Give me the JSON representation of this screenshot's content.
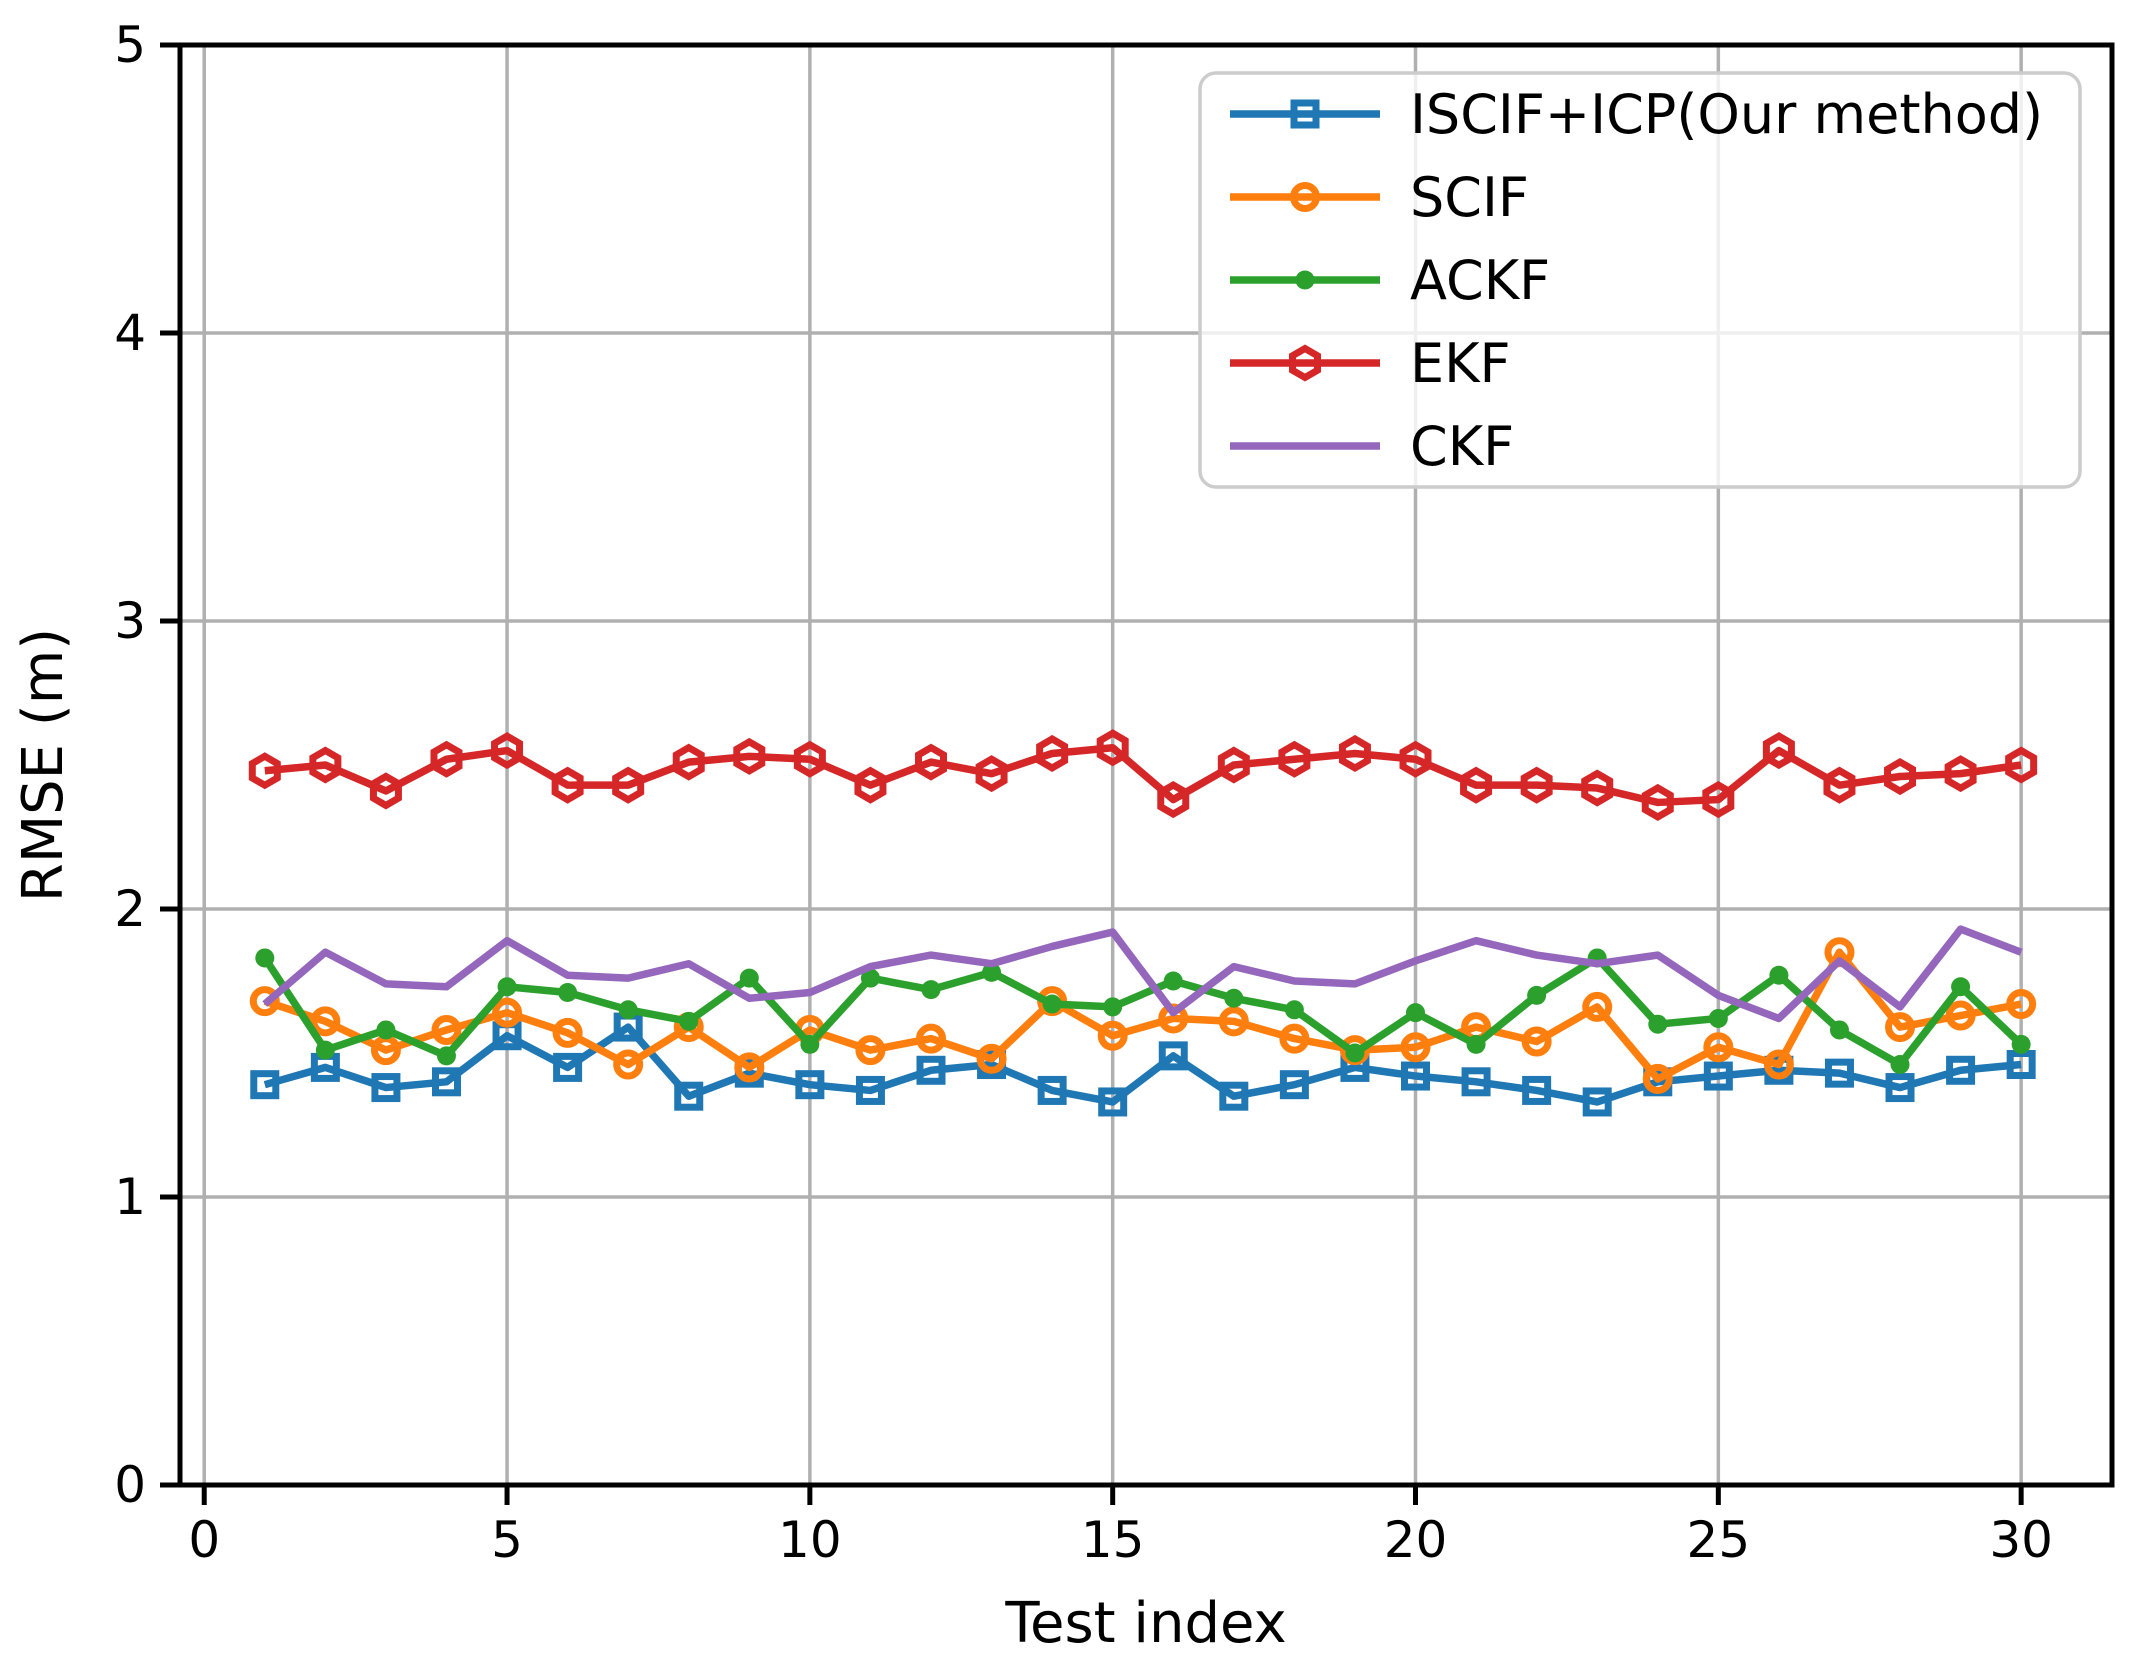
{
  "figure": {
    "background": "#ffffff",
    "grid_color": "#b0b0b0",
    "frame_color": "#000000",
    "legend_border_color": "#cccccc"
  },
  "chart_data": {
    "type": "line",
    "title": "",
    "xlabel": "Test index",
    "ylabel": "RMSE (m)",
    "xlim": [
      -0.4,
      31.5
    ],
    "ylim": [
      0,
      5
    ],
    "grid": true,
    "legend_position": "upper right",
    "xticks": [
      "0",
      "5",
      "10",
      "15",
      "20",
      "25",
      "30"
    ],
    "xtick_values": [
      0,
      5,
      10,
      15,
      20,
      25,
      30
    ],
    "yticks": [
      "0",
      "1",
      "2",
      "3",
      "4",
      "5"
    ],
    "ytick_values": [
      0,
      1,
      2,
      3,
      4,
      5
    ],
    "x": [
      1,
      2,
      3,
      4,
      5,
      6,
      7,
      8,
      9,
      10,
      11,
      12,
      13,
      14,
      15,
      16,
      17,
      18,
      19,
      20,
      21,
      22,
      23,
      24,
      25,
      26,
      27,
      28,
      29,
      30
    ],
    "series": [
      {
        "name": "ISCIF+ICP(Our method)",
        "color": "#1f77b4",
        "marker": "square-open",
        "values": [
          1.39,
          1.45,
          1.38,
          1.4,
          1.56,
          1.45,
          1.59,
          1.35,
          1.43,
          1.39,
          1.37,
          1.44,
          1.46,
          1.37,
          1.33,
          1.49,
          1.35,
          1.39,
          1.45,
          1.42,
          1.4,
          1.37,
          1.33,
          1.4,
          1.42,
          1.44,
          1.43,
          1.38,
          1.44,
          1.46
        ]
      },
      {
        "name": "SCIF",
        "color": "#ff7f0e",
        "marker": "circle-open",
        "values": [
          1.68,
          1.61,
          1.51,
          1.58,
          1.64,
          1.57,
          1.46,
          1.59,
          1.45,
          1.58,
          1.51,
          1.55,
          1.48,
          1.68,
          1.56,
          1.62,
          1.61,
          1.55,
          1.51,
          1.52,
          1.59,
          1.54,
          1.66,
          1.41,
          1.52,
          1.46,
          1.85,
          1.59,
          1.63,
          1.67
        ]
      },
      {
        "name": "ACKF",
        "color": "#2ca02c",
        "marker": "circle-filled",
        "values": [
          1.83,
          1.51,
          1.58,
          1.49,
          1.73,
          1.71,
          1.65,
          1.61,
          1.76,
          1.53,
          1.76,
          1.72,
          1.78,
          1.67,
          1.66,
          1.75,
          1.69,
          1.65,
          1.5,
          1.64,
          1.53,
          1.7,
          1.83,
          1.6,
          1.62,
          1.77,
          1.58,
          1.46,
          1.73,
          1.53
        ]
      },
      {
        "name": "EKF",
        "color": "#d62728",
        "marker": "hexagon-open",
        "values": [
          2.48,
          2.5,
          2.41,
          2.52,
          2.55,
          2.43,
          2.43,
          2.51,
          2.53,
          2.52,
          2.43,
          2.51,
          2.47,
          2.54,
          2.56,
          2.38,
          2.5,
          2.52,
          2.54,
          2.52,
          2.43,
          2.43,
          2.42,
          2.37,
          2.38,
          2.55,
          2.43,
          2.46,
          2.47,
          2.5
        ]
      },
      {
        "name": "CKF",
        "color": "#9467bd",
        "marker": "none",
        "values": [
          1.67,
          1.85,
          1.74,
          1.73,
          1.89,
          1.77,
          1.76,
          1.81,
          1.69,
          1.71,
          1.8,
          1.84,
          1.81,
          1.87,
          1.92,
          1.64,
          1.8,
          1.75,
          1.74,
          1.82,
          1.89,
          1.84,
          1.81,
          1.84,
          1.7,
          1.62,
          1.82,
          1.66,
          1.93,
          1.85
        ]
      }
    ]
  }
}
